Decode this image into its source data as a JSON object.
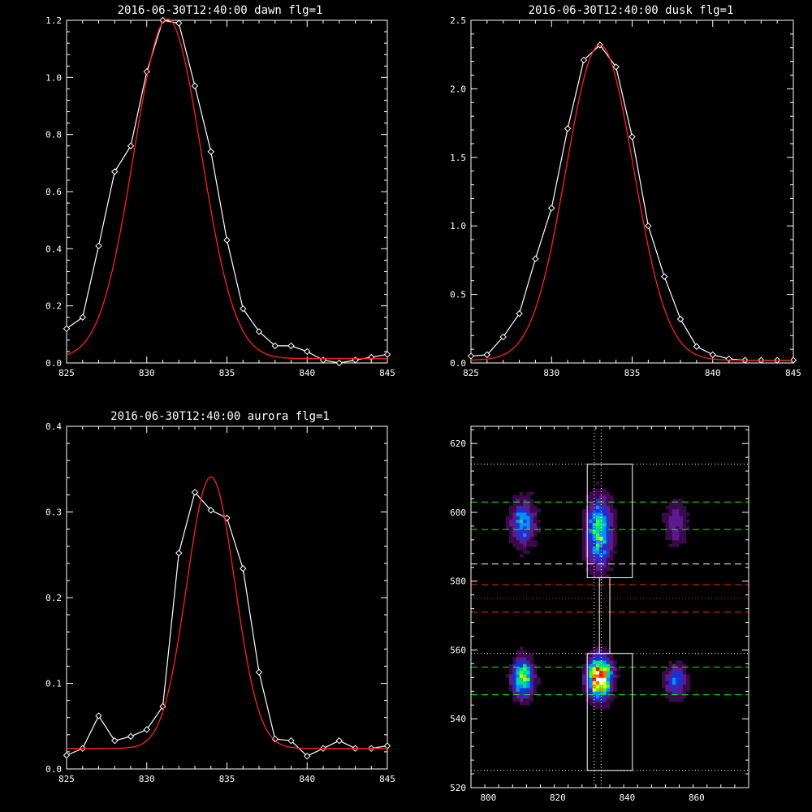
{
  "chart_data": [
    {
      "id": "dawn",
      "type": "line",
      "title": "2016-06-30T12:40:00 dawn flg=1",
      "xlim": [
        825,
        845
      ],
      "ylim": [
        0,
        1.2
      ],
      "xticks": [
        825,
        830,
        835,
        840,
        845
      ],
      "yticks": [
        0.0,
        0.2,
        0.4,
        0.6,
        0.8,
        1.0,
        1.2
      ],
      "xtick_labels": [
        "825",
        "830",
        "835",
        "840",
        "845"
      ],
      "ytick_labels": [
        "0.0",
        "0.2",
        "0.4",
        "0.6",
        "0.8",
        "1.0",
        "1.2"
      ],
      "series": [
        {
          "color": "#ffffff",
          "marker": "diamond",
          "x": [
            825,
            826,
            827,
            828,
            829,
            830,
            831,
            832,
            833,
            834,
            835,
            836,
            837,
            838,
            839,
            840,
            841,
            842,
            843,
            844,
            845
          ],
          "y": [
            0.12,
            0.16,
            0.41,
            0.67,
            0.76,
            1.02,
            1.2,
            1.19,
            0.97,
            0.74,
            0.43,
            0.19,
            0.11,
            0.06,
            0.06,
            0.04,
            0.01,
            0.0,
            0.01,
            0.02,
            0.03
          ]
        },
        {
          "color": "#ff2020",
          "fit": "gaussian",
          "amplitude": 1.19,
          "center": 831.3,
          "sigma": 2.1,
          "offset": 0.015
        }
      ]
    },
    {
      "id": "dusk",
      "type": "line",
      "title": "2016-06-30T12:40:00 dusk flg=1",
      "xlim": [
        825,
        845
      ],
      "ylim": [
        0,
        2.5
      ],
      "xticks": [
        825,
        830,
        835,
        840,
        845
      ],
      "yticks": [
        0.0,
        0.5,
        1.0,
        1.5,
        2.0,
        2.5
      ],
      "xtick_labels": [
        "825",
        "830",
        "835",
        "840",
        "845"
      ],
      "ytick_labels": [
        "0.0",
        "0.5",
        "1.0",
        "1.5",
        "2.0",
        "2.5"
      ],
      "series": [
        {
          "color": "#ffffff",
          "marker": "diamond",
          "x": [
            825,
            826,
            827,
            828,
            829,
            830,
            831,
            832,
            833,
            834,
            835,
            836,
            837,
            838,
            839,
            840,
            841,
            842,
            843,
            844,
            845
          ],
          "y": [
            0.05,
            0.06,
            0.19,
            0.36,
            0.76,
            1.13,
            1.71,
            2.21,
            2.32,
            2.16,
            1.65,
            1.0,
            0.63,
            0.32,
            0.12,
            0.06,
            0.03,
            0.02,
            0.02,
            0.02,
            0.02
          ]
        },
        {
          "color": "#ff2020",
          "fit": "gaussian",
          "amplitude": 2.3,
          "center": 833.0,
          "sigma": 2.1,
          "offset": 0.02
        }
      ]
    },
    {
      "id": "aurora",
      "type": "line",
      "title": "2016-06-30T12:40:00 aurora flg=1",
      "xlim": [
        825,
        845
      ],
      "ylim": [
        0,
        0.4
      ],
      "xticks": [
        825,
        830,
        835,
        840,
        845
      ],
      "yticks": [
        0.0,
        0.1,
        0.2,
        0.3,
        0.4
      ],
      "xtick_labels": [
        "825",
        "830",
        "835",
        "840",
        "845"
      ],
      "ytick_labels": [
        "0.0",
        "0.1",
        "0.2",
        "0.3",
        "0.4"
      ],
      "series": [
        {
          "color": "#ffffff",
          "marker": "diamond",
          "x": [
            825,
            826,
            827,
            828,
            829,
            830,
            831,
            832,
            833,
            834,
            835,
            836,
            837,
            838,
            839,
            840,
            841,
            842,
            843,
            844,
            845
          ],
          "y": [
            0.016,
            0.024,
            0.062,
            0.033,
            0.038,
            0.046,
            0.073,
            0.252,
            0.323,
            0.302,
            0.293,
            0.234,
            0.113,
            0.035,
            0.033,
            0.015,
            0.024,
            0.033,
            0.024,
            0.024,
            0.027
          ]
        },
        {
          "color": "#ff2020",
          "fit": "gaussian",
          "amplitude": 0.317,
          "center": 834.0,
          "sigma": 1.5,
          "offset": 0.024
        }
      ]
    },
    {
      "id": "image",
      "type": "heatmap",
      "title": "",
      "xlim": [
        795,
        875
      ],
      "ylim": [
        520,
        625
      ],
      "xticks": [
        800,
        820,
        840,
        860
      ],
      "yticks": [
        520,
        540,
        560,
        580,
        600,
        620
      ],
      "xtick_labels": [
        "800",
        "820",
        "840",
        "860"
      ],
      "ytick_labels": [
        "520",
        "540",
        "560",
        "580",
        "600",
        "620"
      ],
      "colormap": [
        "#000000",
        "#3a0a4a",
        "#5c1a8c",
        "#2030d0",
        "#0090ff",
        "#00d8a0",
        "#40ff20",
        "#e0ff00",
        "#ff7000",
        "#ff0000",
        "#ffffff"
      ],
      "blobs": [
        {
          "x": 810,
          "y": 597,
          "sx": 2.5,
          "sy": 5,
          "amp": 0.42
        },
        {
          "x": 810,
          "y": 552,
          "sx": 2.2,
          "sy": 4,
          "amp": 0.62
        },
        {
          "x": 832,
          "y": 594,
          "sx": 2.6,
          "sy": 7,
          "amp": 0.55
        },
        {
          "x": 832,
          "y": 552,
          "sx": 2.4,
          "sy": 4,
          "amp": 1.0
        },
        {
          "x": 854,
          "y": 597,
          "sx": 2.5,
          "sy": 5,
          "amp": 0.22
        },
        {
          "x": 854,
          "y": 551,
          "sx": 2.2,
          "sy": 3.5,
          "amp": 0.38
        }
      ],
      "boxes": [
        {
          "x": [
            828.5,
            841.5
          ],
          "y": [
            581,
            614
          ]
        },
        {
          "x": [
            828.5,
            841.5
          ],
          "y": [
            525,
            559
          ]
        },
        {
          "x": [
            832.0,
            835.0
          ],
          "y": [
            559,
            581
          ]
        }
      ],
      "vlines_dotted": {
        "color": "#ffffff",
        "x": [
          830.5,
          832.5
        ],
        "y": [
          520,
          625
        ]
      },
      "hlines": [
        {
          "y": 614,
          "color": "#ffffff",
          "style": "dotted"
        },
        {
          "y": 603,
          "color": "#00ff00",
          "style": "dashed"
        },
        {
          "y": 595,
          "color": "#00ff00",
          "style": "dashed"
        },
        {
          "y": 585,
          "color": "#ffffff",
          "style": "dashed"
        },
        {
          "y": 579,
          "color": "#ff2020",
          "style": "dashed"
        },
        {
          "y": 575,
          "color": "#ff2020",
          "style": "dotted"
        },
        {
          "y": 571,
          "color": "#ff2020",
          "style": "dashed"
        },
        {
          "y": 559,
          "color": "#ffffff",
          "style": "dotted"
        },
        {
          "y": 555,
          "color": "#00ff00",
          "style": "dashed"
        },
        {
          "y": 547,
          "color": "#00ff00",
          "style": "dashed"
        },
        {
          "y": 525,
          "color": "#ffffff",
          "style": "dotted"
        }
      ]
    }
  ]
}
